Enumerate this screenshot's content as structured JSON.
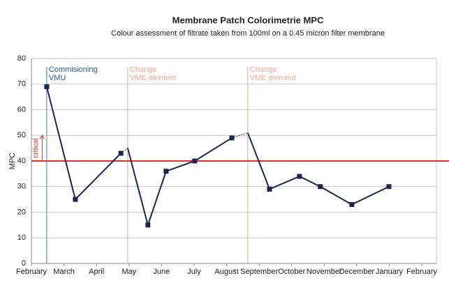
{
  "chart_data": {
    "type": "line",
    "title": "Membrane Patch Colorimetrie MPC",
    "subtitle": "Colour assessment of filtrate taken from 100ml on a 0.45 micron filter membrane",
    "y_label": "MPC",
    "ylim": [
      0,
      80
    ],
    "yticks": [
      0,
      10,
      20,
      30,
      40,
      50,
      60,
      70,
      80
    ],
    "xlim": [
      0,
      12.45
    ],
    "xticks": [
      {
        "value": 0,
        "label": "February"
      },
      {
        "value": 1,
        "label": "March"
      },
      {
        "value": 2,
        "label": "April"
      },
      {
        "value": 3,
        "label": "May"
      },
      {
        "value": 4,
        "label": "June"
      },
      {
        "value": 5,
        "label": "July"
      },
      {
        "value": 6,
        "label": "August"
      },
      {
        "value": 7,
        "label": "September"
      },
      {
        "value": 8,
        "label": "October"
      },
      {
        "value": 9,
        "label": "November"
      },
      {
        "value": 10,
        "label": "December"
      },
      {
        "value": 11,
        "label": "January"
      },
      {
        "value": 12,
        "label": "February"
      }
    ],
    "grid": true,
    "series": [
      {
        "style": "solid",
        "color": "#1c2550",
        "x": [
          0.47,
          1.35,
          2.75,
          null,
          2.96,
          3.58,
          4.14,
          5.02,
          6.16,
          null,
          6.65,
          7.32,
          8.24,
          8.88,
          9.85,
          10.99
        ],
        "values": [
          69,
          25,
          43,
          null,
          45,
          15,
          36,
          40,
          49,
          null,
          51,
          29,
          34,
          30,
          23,
          30
        ]
      },
      {
        "style": "dotted",
        "color": "#1c2550",
        "x": [
          2.75,
          2.96,
          null,
          6.16,
          6.65
        ],
        "values": [
          43,
          45,
          null,
          49,
          51
        ]
      },
      {
        "style": "markers",
        "color": "#1c2550",
        "x": [
          0.47,
          1.35,
          2.75,
          3.58,
          4.14,
          5.02,
          6.16,
          7.32,
          8.24,
          8.88,
          9.85,
          10.99
        ],
        "values": [
          69,
          25,
          43,
          15,
          36,
          40,
          49,
          29,
          34,
          30,
          23,
          30
        ]
      }
    ],
    "events": [
      {
        "x": 0.47,
        "color": "#2a8fc0",
        "text_color": "#1f5e9a",
        "label": [
          "Commisioning",
          "VMU"
        ]
      },
      {
        "x": 2.96,
        "color": "#f0a890",
        "text_color": "#f0a890",
        "label": [
          "Change",
          "VME element"
        ]
      },
      {
        "x": 6.65,
        "color": "#f0a890",
        "text_color": "#f0a890",
        "label": [
          "Change",
          "VME element"
        ]
      }
    ],
    "threshold": {
      "y": 40,
      "color": "#e0302a",
      "label": "critical",
      "arrow_x": 0.33,
      "arrow_to": 50
    }
  }
}
